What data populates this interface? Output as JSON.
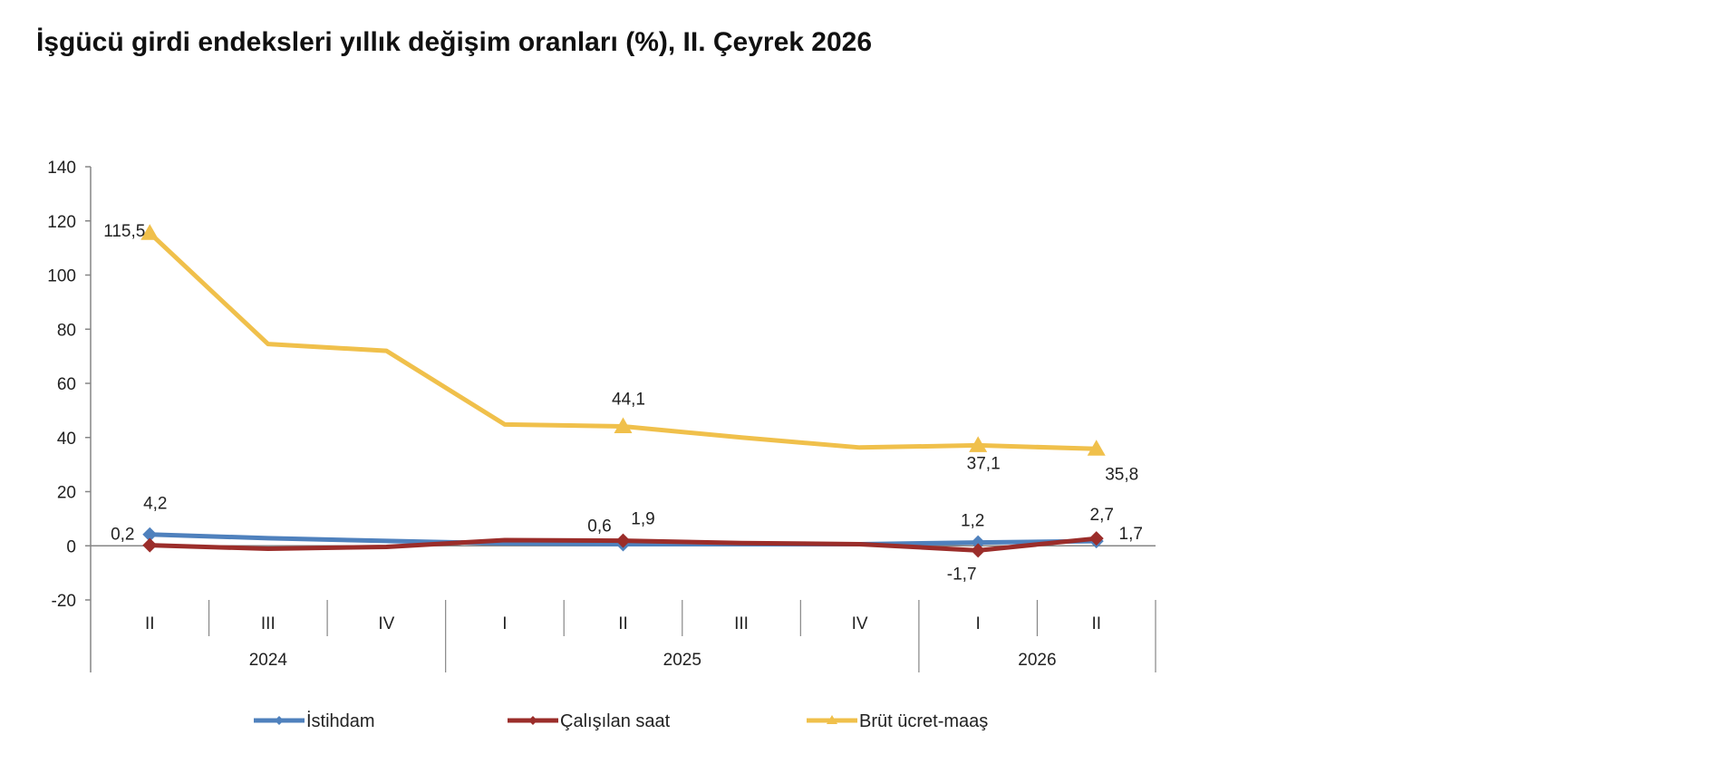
{
  "title": "İşgücü girdi endeksleri yıllık değişim oranları (%), II. Çeyrek 2026",
  "chart_data": {
    "type": "line",
    "title": "İşgücü girdi endeksleri yıllık değişim oranları (%), II. Çeyrek 2026",
    "categories": [
      "II",
      "III",
      "IV",
      "I",
      "II",
      "III",
      "IV",
      "I",
      "II"
    ],
    "years": [
      {
        "label": "2024",
        "start": 0,
        "end": 2
      },
      {
        "label": "2025",
        "start": 3,
        "end": 6
      },
      {
        "label": "2026",
        "start": 7,
        "end": 8
      }
    ],
    "ylim": [
      -20,
      140
    ],
    "yticks": [
      -20,
      0,
      20,
      40,
      60,
      80,
      100,
      120,
      140
    ],
    "grid": false,
    "legend_position": "bottom",
    "series": [
      {
        "name": "İstihdam",
        "color": "#4F81BD",
        "marker": "diamond",
        "values": [
          4.2,
          2.8,
          1.8,
          0.9,
          0.6,
          0.6,
          0.6,
          1.2,
          1.7
        ],
        "labels": [
          "4,2",
          "",
          "",
          "",
          "0,6",
          "",
          "",
          "1,2",
          "1,7"
        ]
      },
      {
        "name": "Çalışılan saat",
        "color": "#9B2D2A",
        "marker": "diamond",
        "values": [
          0.2,
          -1.1,
          -0.4,
          2.1,
          1.9,
          1.0,
          0.6,
          -1.7,
          2.7
        ],
        "labels": [
          "0,2",
          "",
          "",
          "",
          "1,9",
          "",
          "",
          "-1,7",
          "2,7"
        ]
      },
      {
        "name": "Brüt ücret-maaş",
        "color": "#F0C04B",
        "marker": "triangle",
        "values": [
          115.5,
          74.5,
          72.0,
          44.8,
          44.1,
          40.0,
          36.3,
          37.1,
          35.8
        ],
        "labels": [
          "115,5",
          "",
          "",
          "",
          "44,1",
          "",
          "",
          "37,1",
          "35,8"
        ]
      }
    ]
  }
}
